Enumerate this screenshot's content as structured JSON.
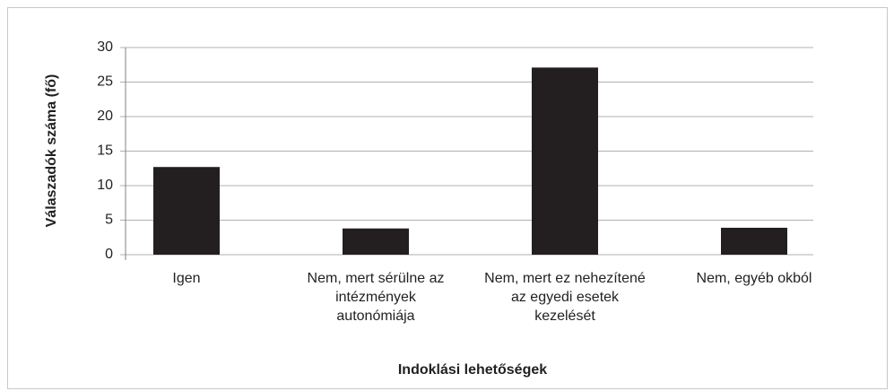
{
  "chart_data": {
    "type": "bar",
    "categories": [
      "Igen",
      "Nem, mert sérülne az intézmények autonómiája",
      "Nem, mert ez nehezítené az egyedi esetek kezelését",
      "Nem, egyéb okból"
    ],
    "values": [
      12.7,
      3.8,
      27.1,
      3.9
    ],
    "color": "#231f20",
    "x_label": "Indoklási lehetőségek",
    "y_label": "Válaszadók száma (fő)",
    "ylim": [
      0,
      30
    ],
    "yticks": [
      0,
      5,
      10,
      15,
      20,
      25,
      30
    ],
    "grid": true
  }
}
